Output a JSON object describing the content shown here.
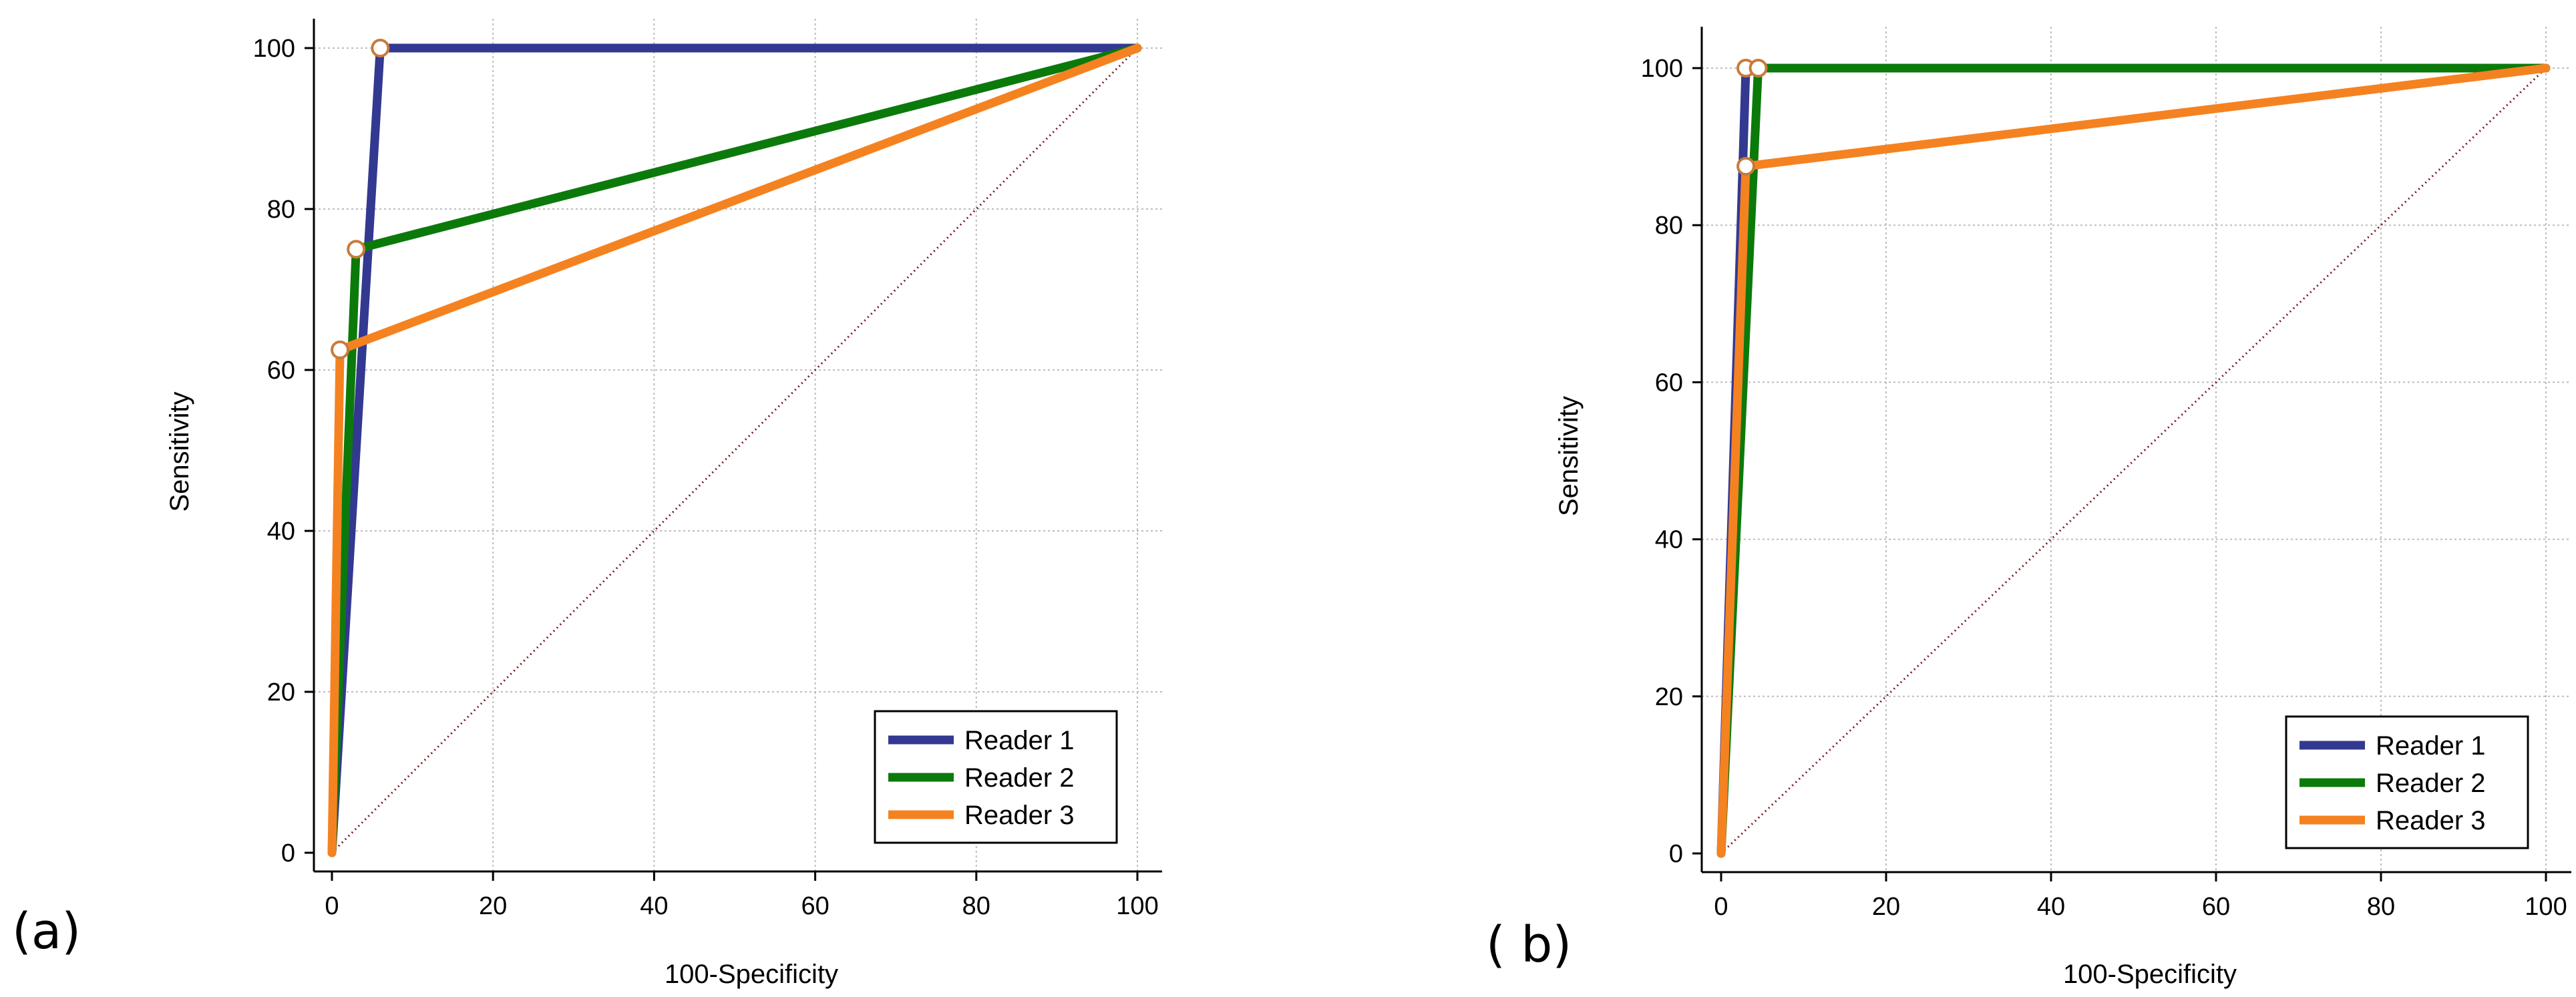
{
  "panel_labels": {
    "a": "(a)",
    "b": "( b)"
  },
  "colors": {
    "reader1": "#333891",
    "reader2": "#0b7a0b",
    "reader3": "#f58220",
    "diagonal": "#7a1a24",
    "grid": "#bcbcbc",
    "axis": "#000000",
    "marker_fill": "#ffffff",
    "marker_stroke": "#c87a3a"
  },
  "chart_data": [
    {
      "type": "line",
      "panel": "(a)",
      "title": "",
      "xlabel": "100-Specificity",
      "ylabel": "Sensitivity",
      "xlim": [
        0,
        100
      ],
      "ylim": [
        0,
        100
      ],
      "xticks": [
        0,
        20,
        40,
        60,
        80,
        100
      ],
      "yticks": [
        0,
        20,
        40,
        60,
        80,
        100
      ],
      "grid": true,
      "legend_position": "bottom-right",
      "reference_line": {
        "x": [
          0,
          100
        ],
        "y": [
          0,
          100
        ],
        "style": "dotted"
      },
      "series": [
        {
          "name": "Reader 1",
          "color_key": "reader1",
          "x": [
            0,
            6,
            100
          ],
          "y": [
            0,
            100,
            100
          ],
          "operating_point": [
            6,
            100
          ]
        },
        {
          "name": "Reader 2",
          "color_key": "reader2",
          "x": [
            0,
            3,
            100
          ],
          "y": [
            0,
            75,
            100
          ],
          "operating_point": [
            3,
            75
          ]
        },
        {
          "name": "Reader 3",
          "color_key": "reader3",
          "x": [
            0,
            1,
            100
          ],
          "y": [
            0,
            62.5,
            100
          ],
          "operating_point": [
            1,
            62.5
          ]
        }
      ]
    },
    {
      "type": "line",
      "panel": "( b)",
      "title": "",
      "xlabel": "100-Specificity",
      "ylabel": "Sensitivity",
      "xlim": [
        0,
        100
      ],
      "ylim": [
        0,
        100
      ],
      "xticks": [
        0,
        20,
        40,
        60,
        80,
        100
      ],
      "yticks": [
        0,
        20,
        40,
        60,
        80,
        100
      ],
      "grid": true,
      "legend_position": "bottom-right",
      "reference_line": {
        "x": [
          0,
          100
        ],
        "y": [
          0,
          100
        ],
        "style": "dotted"
      },
      "series": [
        {
          "name": "Reader 1",
          "color_key": "reader1",
          "x": [
            0,
            3,
            100
          ],
          "y": [
            0,
            100,
            100
          ],
          "operating_point": [
            3,
            100
          ]
        },
        {
          "name": "Reader 2",
          "color_key": "reader2",
          "x": [
            0,
            4.5,
            100
          ],
          "y": [
            0,
            100,
            100
          ],
          "operating_point": [
            4.5,
            100
          ]
        },
        {
          "name": "Reader 3",
          "color_key": "reader3",
          "x": [
            0,
            3,
            100
          ],
          "y": [
            0,
            87.5,
            100
          ],
          "operating_point": [
            3,
            87.5
          ]
        }
      ]
    }
  ]
}
